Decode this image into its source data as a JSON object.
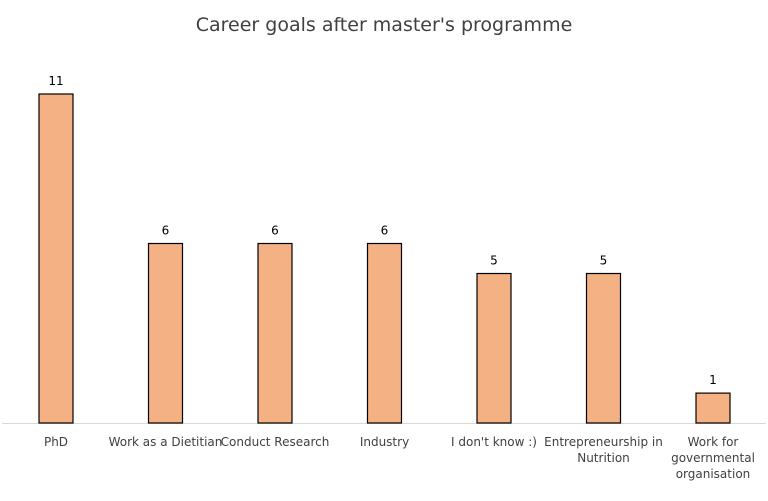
{
  "chart_data": {
    "type": "bar",
    "title": "Career goals after master's programme",
    "categories": [
      [
        "PhD"
      ],
      [
        "Work as a Dietitian"
      ],
      [
        "Conduct Research"
      ],
      [
        "Industry"
      ],
      [
        "I don't know :)"
      ],
      [
        "Entrepreneurship in",
        "Nutrition"
      ],
      [
        "Work for",
        "governmental",
        "organisation"
      ]
    ],
    "values": [
      11,
      6,
      6,
      6,
      5,
      5,
      1
    ],
    "data_labels": [
      "11",
      "6",
      "6",
      "6",
      "5",
      "5",
      "1"
    ],
    "ylim": [
      0,
      11
    ],
    "grid": false,
    "legend": "none",
    "xlabel": "",
    "ylabel": "",
    "colors": {
      "bar_fill": "#F4B183",
      "bar_stroke": "#000000",
      "axis": "#D9D9D9",
      "text": "#404040"
    }
  }
}
